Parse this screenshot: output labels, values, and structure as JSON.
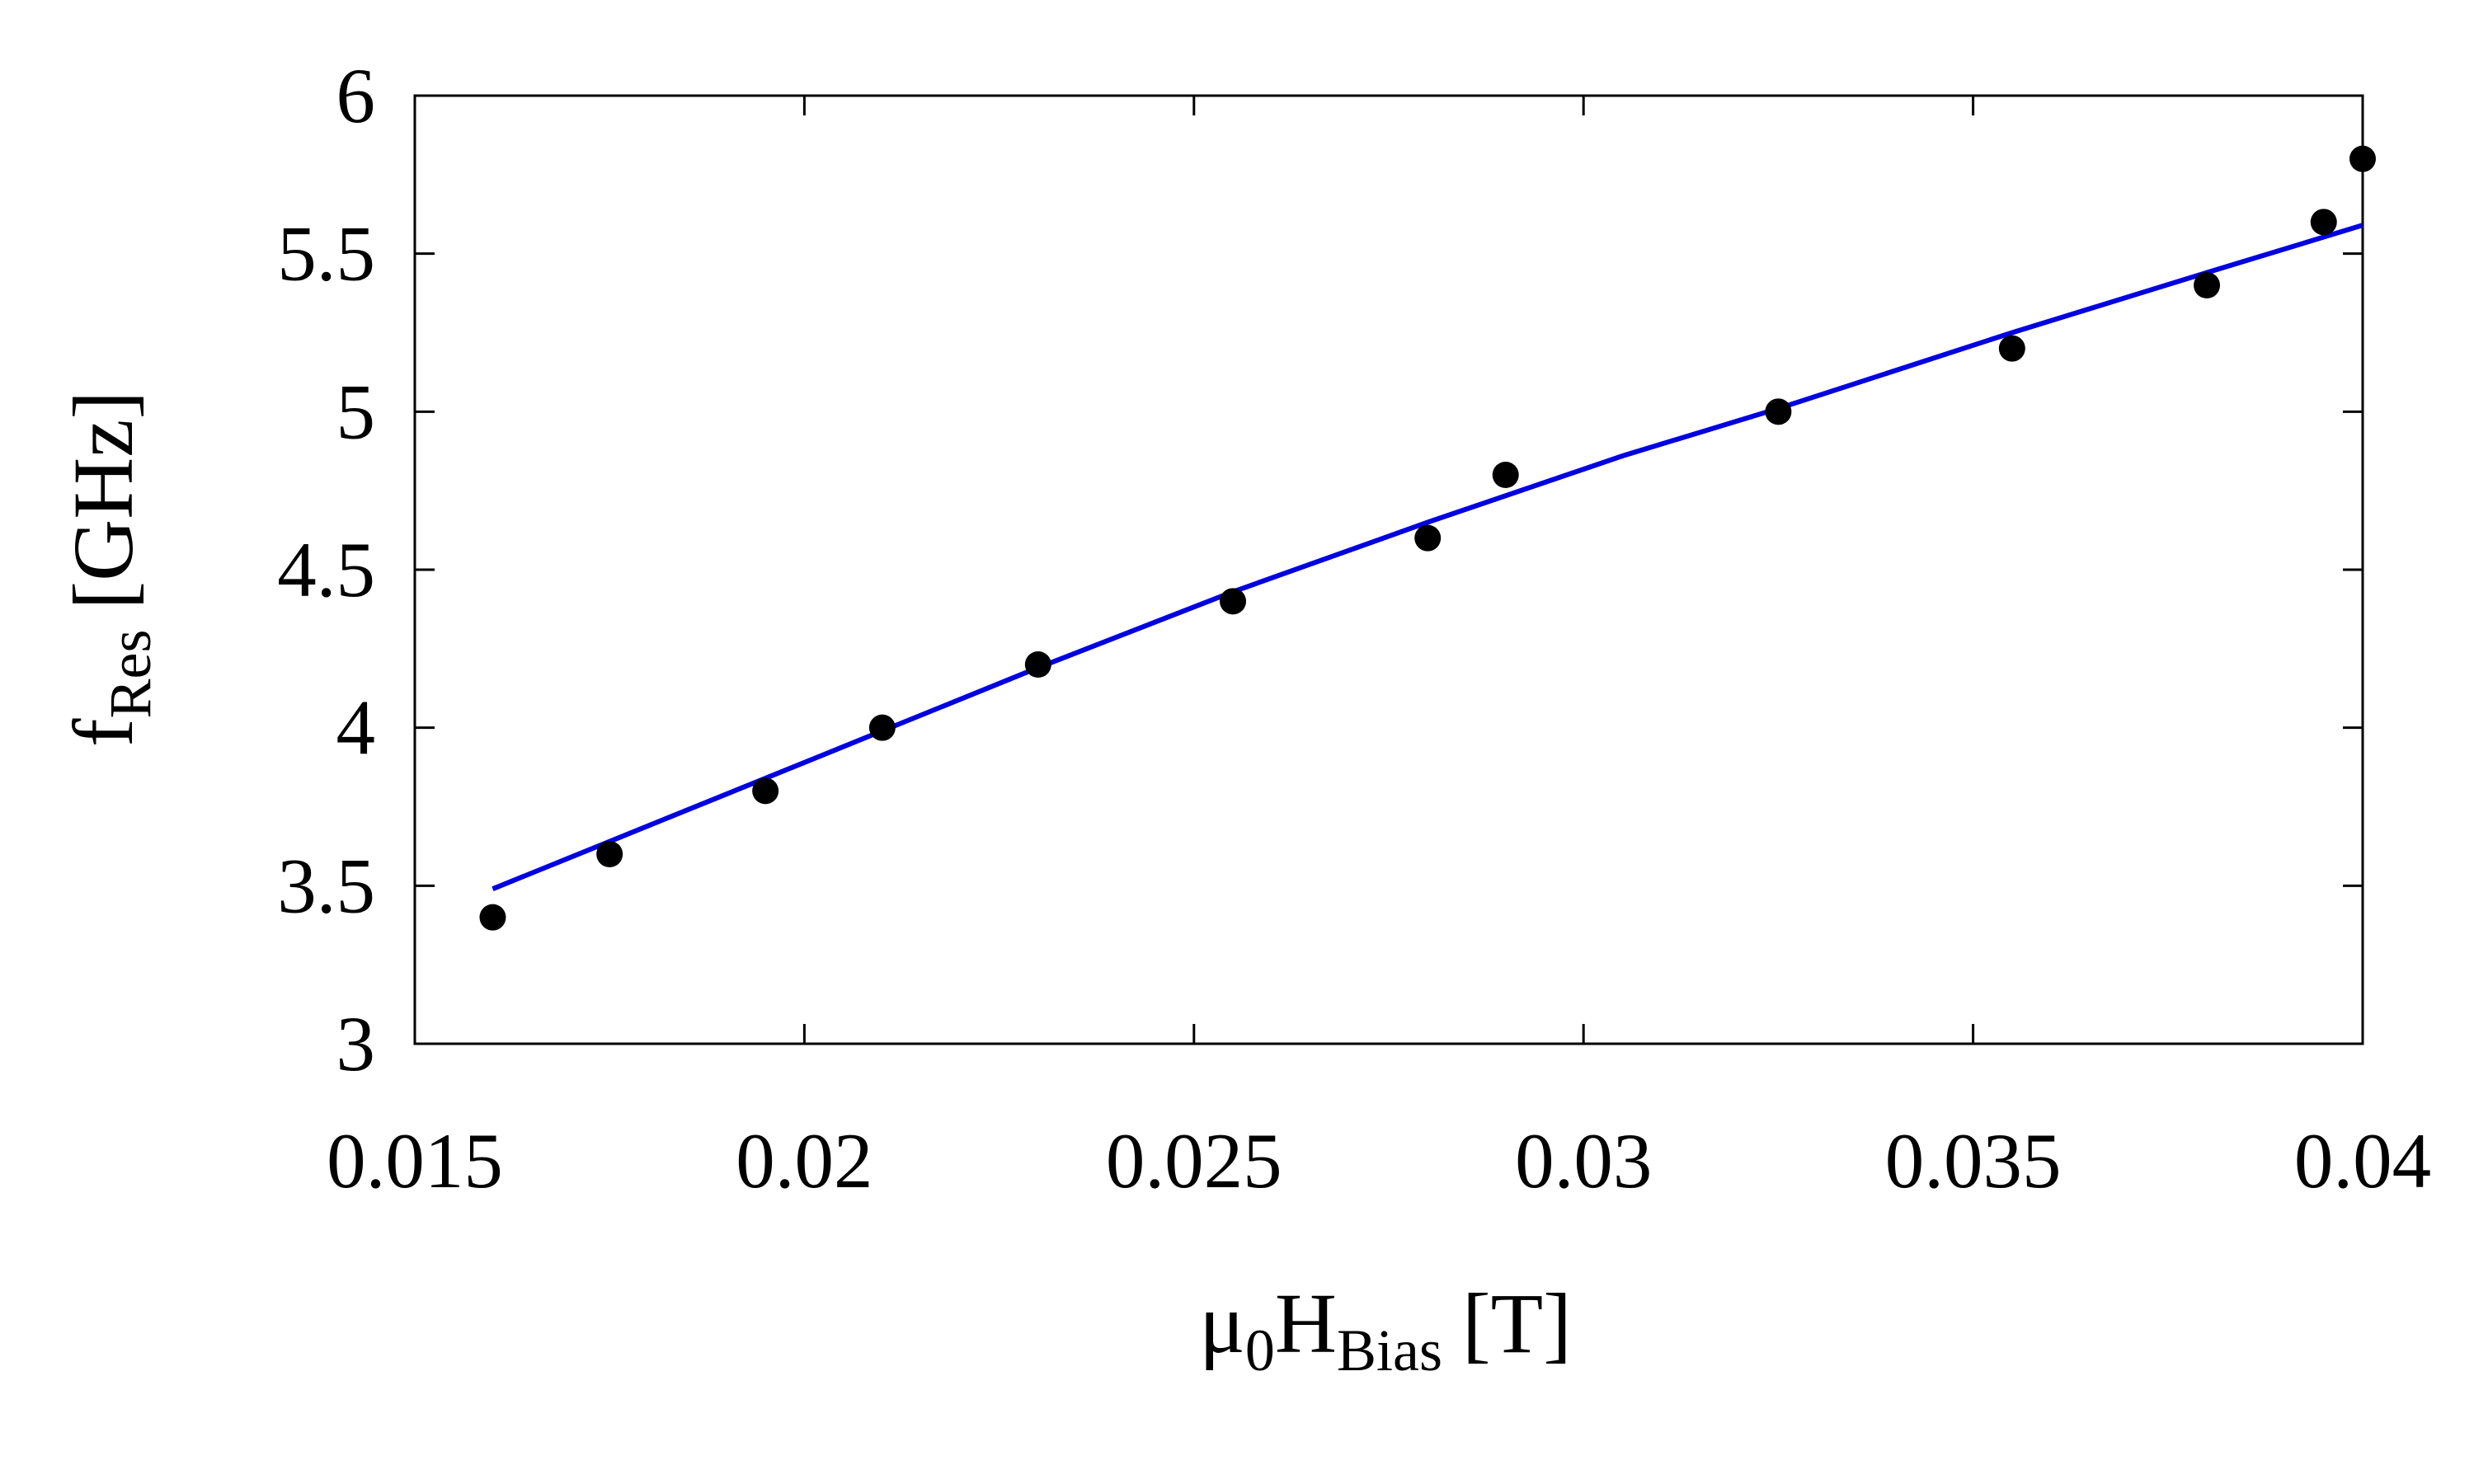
{
  "chart_data": {
    "type": "scatter",
    "xlabel": [
      {
        "text": "μ"
      },
      {
        "text": "0",
        "sub": true
      },
      {
        "text": "H"
      },
      {
        "text": "Bias",
        "sub": true
      },
      {
        "text": "[T]"
      }
    ],
    "ylabel": [
      {
        "text": "f"
      },
      {
        "text": "Res",
        "sub": true
      },
      {
        "text": "[GHz]"
      }
    ],
    "xlim": [
      0.015,
      0.04
    ],
    "xticks": [
      0.015,
      0.02,
      0.025,
      0.03,
      0.035,
      0.04
    ],
    "ylim": [
      3,
      6
    ],
    "yticks": [
      3,
      3.5,
      4,
      4.5,
      5,
      5.5,
      6
    ],
    "series": [
      {
        "type": "scatter",
        "color": "#000000",
        "x": [
          0.016,
          0.0175,
          0.0195,
          0.021,
          0.023,
          0.0255,
          0.028,
          0.029,
          0.0325,
          0.0355,
          0.038,
          0.0395,
          0.04
        ],
        "values": [
          3.4,
          3.6,
          3.8,
          4.0,
          4.2,
          4.4,
          4.6,
          4.8,
          5.0,
          5.2,
          5.4,
          5.6,
          5.8
        ]
      },
      {
        "type": "line",
        "color": "#0000e0",
        "x": [
          0.016,
          0.0175,
          0.019,
          0.021,
          0.023,
          0.0255,
          0.028,
          0.0305,
          0.0325,
          0.0355,
          0.038,
          0.04
        ],
        "values": [
          3.49,
          3.64,
          3.79,
          3.99,
          4.19,
          4.43,
          4.65,
          4.86,
          5.01,
          5.25,
          5.44,
          5.59
        ]
      }
    ]
  }
}
